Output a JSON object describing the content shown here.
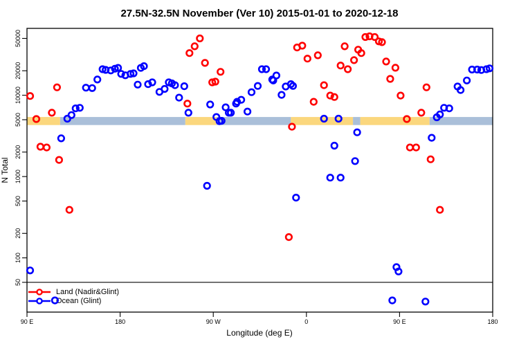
{
  "chart_data": {
    "type": "scatter",
    "title": "27.5N-32.5N November (Ver 10)   2015-01-01 to 2020-12-18",
    "xlabel": "Longitude (deg E)",
    "ylabel": "N Total",
    "x_axis": {
      "range_deg": [
        90,
        540
      ],
      "ticks": [
        90,
        180,
        270,
        360,
        450,
        540
      ],
      "tick_labels": [
        "90 E",
        "180",
        "90 W",
        "0",
        "90 E",
        "180"
      ],
      "note": "longitude axis wraps eastward: 90E to 180 to 90W to 0 to 90E to 180"
    },
    "y_axis": {
      "scale": "log",
      "range": [
        19,
        68000
      ],
      "ticks": [
        50,
        100,
        200,
        500,
        1000,
        2000,
        5000,
        10000,
        20000,
        50000
      ],
      "tick_labels": [
        "50",
        "100",
        "200",
        "500",
        "1000",
        "2000",
        "5000",
        "10000",
        "20000",
        "50000"
      ]
    },
    "reference_line": {
      "y": 50,
      "color": "#5e5e5e"
    },
    "reference_band": {
      "n_range": [
        4300,
        5400
      ],
      "segments": [
        {
          "from": 90,
          "to": 122,
          "color": "#fbd77d"
        },
        {
          "from": 122,
          "to": 243,
          "color": "#aabfd9"
        },
        {
          "from": 243,
          "to": 273,
          "color": "#fbd77d"
        },
        {
          "from": 273,
          "to": 345,
          "color": "#aabfd9"
        },
        {
          "from": 345,
          "to": 405,
          "color": "#fbd77d"
        },
        {
          "from": 405,
          "to": 412,
          "color": "#aabfd9"
        },
        {
          "from": 412,
          "to": 479,
          "color": "#fbd77d"
        },
        {
          "from": 479,
          "to": 540,
          "color": "#aabfd9"
        }
      ]
    },
    "series": [
      {
        "key": "land",
        "name": "Land (Nadir&Glint)",
        "color": "#ff0000",
        "points": [
          [
            93,
            9800
          ],
          [
            99,
            5100
          ],
          [
            103,
            2330
          ],
          [
            109,
            2280
          ],
          [
            114,
            6100
          ],
          [
            119,
            12500
          ],
          [
            121,
            1600
          ],
          [
            131,
            390
          ],
          [
            245,
            7900
          ],
          [
            247,
            33000
          ],
          [
            252,
            40000
          ],
          [
            257,
            50000
          ],
          [
            262,
            25000
          ],
          [
            269,
            14400
          ],
          [
            272,
            14700
          ],
          [
            277,
            19400
          ],
          [
            343,
            180
          ],
          [
            346,
            4100
          ],
          [
            351,
            38700
          ],
          [
            356,
            40700
          ],
          [
            361,
            28200
          ],
          [
            367,
            8300
          ],
          [
            371,
            31000
          ],
          [
            377,
            13300
          ],
          [
            383,
            9900
          ],
          [
            387,
            9500
          ],
          [
            393,
            23200
          ],
          [
            397,
            40000
          ],
          [
            400,
            20900
          ],
          [
            406,
            27000
          ],
          [
            410,
            36300
          ],
          [
            413,
            33000
          ],
          [
            417,
            52000
          ],
          [
            421,
            53000
          ],
          [
            426,
            52000
          ],
          [
            430,
            46000
          ],
          [
            433,
            45000
          ],
          [
            437,
            26000
          ],
          [
            441,
            15900
          ],
          [
            446,
            21800
          ],
          [
            451,
            9900
          ],
          [
            457,
            5100
          ],
          [
            460,
            2280
          ],
          [
            466,
            2280
          ],
          [
            471,
            6100
          ],
          [
            476,
            12500
          ],
          [
            480,
            1630
          ],
          [
            489,
            390
          ]
        ]
      },
      {
        "key": "ocean",
        "name": "Ocean (Glint)",
        "color": "#0000ff",
        "points": [
          [
            93,
            70
          ],
          [
            117,
            30
          ],
          [
            123,
            2950
          ],
          [
            129,
            5150
          ],
          [
            133,
            5700
          ],
          [
            137,
            6900
          ],
          [
            141,
            7000
          ],
          [
            147,
            12400
          ],
          [
            153,
            12250
          ],
          [
            158,
            15600
          ],
          [
            163,
            20900
          ],
          [
            166,
            20500
          ],
          [
            171,
            20200
          ],
          [
            175,
            21200
          ],
          [
            178,
            21700
          ],
          [
            181,
            18300
          ],
          [
            185,
            17600
          ],
          [
            190,
            18300
          ],
          [
            193,
            18600
          ],
          [
            197,
            13500
          ],
          [
            200,
            21700
          ],
          [
            203,
            22800
          ],
          [
            207,
            13700
          ],
          [
            211,
            14400
          ],
          [
            218,
            11000
          ],
          [
            223,
            11950
          ],
          [
            227,
            14400
          ],
          [
            230,
            14000
          ],
          [
            233,
            13300
          ],
          [
            237,
            9350
          ],
          [
            242,
            12900
          ],
          [
            246,
            6100
          ],
          [
            264,
            770
          ],
          [
            267,
            7700
          ],
          [
            273,
            5400
          ],
          [
            276,
            4800
          ],
          [
            278,
            4850
          ],
          [
            282,
            7100
          ],
          [
            285,
            6100
          ],
          [
            287,
            6100
          ],
          [
            292,
            7900
          ],
          [
            293,
            8300
          ],
          [
            297,
            8800
          ],
          [
            303,
            6300
          ],
          [
            307,
            10900
          ],
          [
            313,
            13000
          ],
          [
            317,
            20900
          ],
          [
            321,
            20900
          ],
          [
            327,
            15600
          ],
          [
            328,
            15200
          ],
          [
            331,
            17500
          ],
          [
            336,
            10100
          ],
          [
            340,
            12800
          ],
          [
            345,
            13700
          ],
          [
            347,
            13000
          ],
          [
            350,
            550
          ],
          [
            377,
            5150
          ],
          [
            383,
            970
          ],
          [
            387,
            2400
          ],
          [
            391,
            5150
          ],
          [
            393,
            970
          ],
          [
            407,
            1550
          ],
          [
            409,
            3500
          ],
          [
            443,
            30
          ],
          [
            447,
            77
          ],
          [
            449,
            68
          ],
          [
            475,
            29
          ],
          [
            481,
            3000
          ],
          [
            486,
            5350
          ],
          [
            489,
            5800
          ],
          [
            493,
            7000
          ],
          [
            498,
            6900
          ],
          [
            506,
            12800
          ],
          [
            509,
            11600
          ],
          [
            515,
            15200
          ],
          [
            520,
            20700
          ],
          [
            525,
            20700
          ],
          [
            529,
            20400
          ],
          [
            534,
            20900
          ],
          [
            537,
            21400
          ]
        ]
      }
    ],
    "legend": {
      "position": "bottom-left-inside"
    }
  }
}
